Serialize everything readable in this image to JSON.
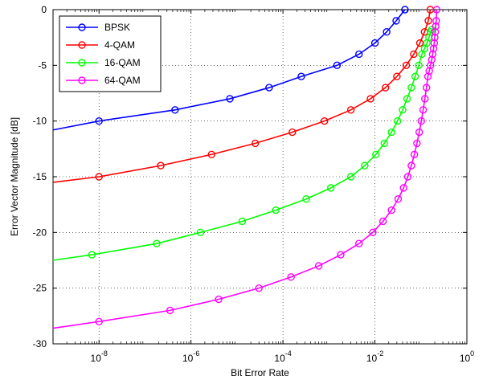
{
  "chart_data": {
    "type": "line",
    "title": "",
    "xlabel": "Bit Error Rate",
    "ylabel": "Error Vector Magnitude [dB]",
    "xscale": "log",
    "xlim": [
      1e-09,
      1
    ],
    "ylim": [
      -30,
      0
    ],
    "grid": true,
    "legend_position": "top-left",
    "x_ticks": [
      {
        "base": "10",
        "exp": "-8",
        "value": 1e-08
      },
      {
        "base": "10",
        "exp": "-6",
        "value": 1e-06
      },
      {
        "base": "10",
        "exp": "-4",
        "value": 0.0001
      },
      {
        "base": "10",
        "exp": "-2",
        "value": 0.01
      },
      {
        "base": "10",
        "exp": "0",
        "value": 1
      }
    ],
    "y_ticks": [
      {
        "label": "0",
        "value": 0
      },
      {
        "label": "-5",
        "value": -5
      },
      {
        "label": "-10",
        "value": -10
      },
      {
        "label": "-15",
        "value": -15
      },
      {
        "label": "-20",
        "value": -20
      },
      {
        "label": "-25",
        "value": -25
      },
      {
        "label": "-30",
        "value": -30
      }
    ],
    "series": [
      {
        "name": "BPSK",
        "color": "#0000ff",
        "x": [
          1e-09,
          1e-08,
          4.5e-07,
          7e-06,
          5e-05,
          0.00025,
          0.0015,
          0.0045,
          0.01,
          0.018,
          0.029,
          0.045
        ],
        "y": [
          -10.8,
          -10,
          -9,
          -8,
          -7,
          -6,
          -5,
          -4,
          -3,
          -2,
          -1,
          0
        ],
        "markers": [
          {
            "x": 1e-08,
            "y": -10
          },
          {
            "x": 4.5e-07,
            "y": -9
          },
          {
            "x": 7e-06,
            "y": -8
          },
          {
            "x": 5e-05,
            "y": -7
          },
          {
            "x": 0.00025,
            "y": -6
          },
          {
            "x": 0.0015,
            "y": -5
          },
          {
            "x": 0.0045,
            "y": -4
          },
          {
            "x": 0.01,
            "y": -3
          },
          {
            "x": 0.018,
            "y": -2
          },
          {
            "x": 0.029,
            "y": -1
          },
          {
            "x": 0.045,
            "y": 0
          }
        ]
      },
      {
        "name": "4-QAM",
        "color": "#ff0000",
        "x": [
          1e-09,
          1e-08,
          2.2e-07,
          2.8e-06,
          2.5e-05,
          0.00016,
          0.0008,
          0.003,
          0.008,
          0.017,
          0.03,
          0.048,
          0.07,
          0.095,
          0.12,
          0.145,
          0.16
        ],
        "y": [
          -15.5,
          -15,
          -14,
          -13,
          -12,
          -11,
          -10,
          -9,
          -8,
          -7,
          -6,
          -5,
          -4,
          -3,
          -2,
          -1,
          0
        ],
        "markers": [
          {
            "x": 1e-08,
            "y": -15
          },
          {
            "x": 2.2e-07,
            "y": -14
          },
          {
            "x": 2.8e-06,
            "y": -13
          },
          {
            "x": 2.5e-05,
            "y": -12
          },
          {
            "x": 0.00016,
            "y": -11
          },
          {
            "x": 0.0008,
            "y": -10
          },
          {
            "x": 0.003,
            "y": -9
          },
          {
            "x": 0.008,
            "y": -8
          },
          {
            "x": 0.017,
            "y": -7
          },
          {
            "x": 0.03,
            "y": -6
          },
          {
            "x": 0.048,
            "y": -5
          },
          {
            "x": 0.07,
            "y": -4
          },
          {
            "x": 0.095,
            "y": -3
          },
          {
            "x": 0.12,
            "y": -2
          },
          {
            "x": 0.145,
            "y": -1
          },
          {
            "x": 0.16,
            "y": 0
          }
        ]
      },
      {
        "name": "16-QAM",
        "color": "#00ff00",
        "x": [
          1e-09,
          7e-09,
          1.8e-07,
          1.6e-06,
          1.3e-05,
          7e-05,
          0.00032,
          0.0011,
          0.003,
          0.006,
          0.0105,
          0.016,
          0.023,
          0.031,
          0.04,
          0.05,
          0.062,
          0.075,
          0.09,
          0.105,
          0.12,
          0.135,
          0.15,
          0.162,
          0.172
        ],
        "y": [
          -22.5,
          -22,
          -21,
          -20,
          -19,
          -18,
          -17,
          -16,
          -15,
          -14,
          -13,
          -12,
          -11,
          -10,
          -9,
          -8,
          -7,
          -6,
          -5,
          -4,
          -3.5,
          -3,
          -2.5,
          -2,
          -1.8
        ],
        "markers": [
          {
            "x": 7e-09,
            "y": -22
          },
          {
            "x": 1.8e-07,
            "y": -21
          },
          {
            "x": 1.6e-06,
            "y": -20
          },
          {
            "x": 1.3e-05,
            "y": -19
          },
          {
            "x": 7e-05,
            "y": -18
          },
          {
            "x": 0.00032,
            "y": -17
          },
          {
            "x": 0.0011,
            "y": -16
          },
          {
            "x": 0.003,
            "y": -15
          },
          {
            "x": 0.006,
            "y": -14
          },
          {
            "x": 0.0105,
            "y": -13
          },
          {
            "x": 0.016,
            "y": -12
          },
          {
            "x": 0.023,
            "y": -11
          },
          {
            "x": 0.031,
            "y": -10
          },
          {
            "x": 0.04,
            "y": -9
          },
          {
            "x": 0.05,
            "y": -8
          },
          {
            "x": 0.062,
            "y": -7
          },
          {
            "x": 0.075,
            "y": -6
          },
          {
            "x": 0.09,
            "y": -5
          },
          {
            "x": 0.105,
            "y": -4
          },
          {
            "x": 0.12,
            "y": -3.5
          },
          {
            "x": 0.135,
            "y": -3
          },
          {
            "x": 0.15,
            "y": -2.5
          },
          {
            "x": 0.162,
            "y": -2
          },
          {
            "x": 0.172,
            "y": -1.8
          }
        ]
      },
      {
        "name": "64-QAM",
        "color": "#ff00ff",
        "x": [
          1e-09,
          1e-08,
          3.5e-07,
          4e-06,
          3e-05,
          0.00015,
          0.0006,
          0.0018,
          0.0045,
          0.009,
          0.015,
          0.023,
          0.032,
          0.042,
          0.052,
          0.062,
          0.072,
          0.082,
          0.092,
          0.102,
          0.112,
          0.122,
          0.132,
          0.142,
          0.152,
          0.162,
          0.172,
          0.18,
          0.188,
          0.195,
          0.2,
          0.205,
          0.21,
          0.215,
          0.22
        ],
        "y": [
          -28.6,
          -28,
          -27,
          -26,
          -25,
          -24,
          -23,
          -22,
          -21,
          -20,
          -19,
          -18,
          -17,
          -16,
          -15,
          -14,
          -13,
          -12,
          -11,
          -10,
          -9,
          -8,
          -7,
          -6,
          -5.5,
          -5,
          -4.5,
          -4,
          -3.5,
          -3,
          -2.5,
          -2,
          -1.5,
          -1,
          0
        ],
        "markers": [
          {
            "x": 1e-08,
            "y": -28
          },
          {
            "x": 3.5e-07,
            "y": -27
          },
          {
            "x": 4e-06,
            "y": -26
          },
          {
            "x": 3e-05,
            "y": -25
          },
          {
            "x": 0.00015,
            "y": -24
          },
          {
            "x": 0.0006,
            "y": -23
          },
          {
            "x": 0.0018,
            "y": -22
          },
          {
            "x": 0.0045,
            "y": -21
          },
          {
            "x": 0.009,
            "y": -20
          },
          {
            "x": 0.015,
            "y": -19
          },
          {
            "x": 0.023,
            "y": -18
          },
          {
            "x": 0.032,
            "y": -17
          },
          {
            "x": 0.042,
            "y": -16
          },
          {
            "x": 0.052,
            "y": -15
          },
          {
            "x": 0.062,
            "y": -14
          },
          {
            "x": 0.072,
            "y": -13
          },
          {
            "x": 0.082,
            "y": -12
          },
          {
            "x": 0.092,
            "y": -11
          },
          {
            "x": 0.102,
            "y": -10
          },
          {
            "x": 0.112,
            "y": -9
          },
          {
            "x": 0.122,
            "y": -8
          },
          {
            "x": 0.132,
            "y": -7
          },
          {
            "x": 0.142,
            "y": -6
          },
          {
            "x": 0.152,
            "y": -5.5
          },
          {
            "x": 0.162,
            "y": -5
          },
          {
            "x": 0.172,
            "y": -4.5
          },
          {
            "x": 0.18,
            "y": -4
          },
          {
            "x": 0.188,
            "y": -3.5
          },
          {
            "x": 0.195,
            "y": -3
          },
          {
            "x": 0.2,
            "y": -2.5
          },
          {
            "x": 0.205,
            "y": -2
          },
          {
            "x": 0.21,
            "y": -1.5
          },
          {
            "x": 0.215,
            "y": -1
          },
          {
            "x": 0.22,
            "y": 0
          }
        ]
      }
    ]
  }
}
